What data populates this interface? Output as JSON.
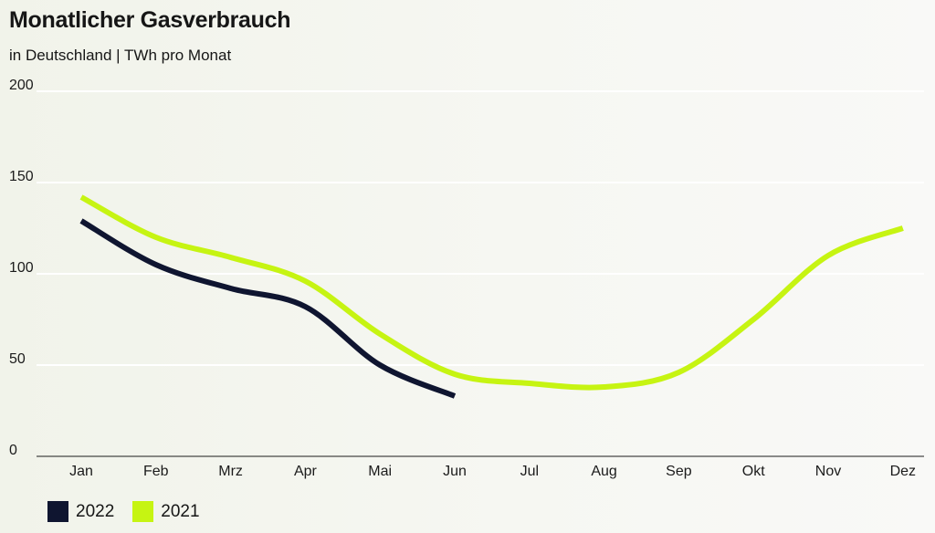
{
  "title": "Monatlicher Gasverbrauch",
  "subtitle": "in Deutschland | TWh pro Monat",
  "colors": {
    "series_2022": "#0f1530",
    "series_2021": "#c6f412",
    "axis": "#1b1b1b",
    "grid": "#ffffff"
  },
  "chart_data": {
    "type": "line",
    "categories": [
      "Jan",
      "Feb",
      "Mrz",
      "Apr",
      "Mai",
      "Jun",
      "Jul",
      "Aug",
      "Sep",
      "Okt",
      "Nov",
      "Dez"
    ],
    "series": [
      {
        "name": "2022",
        "values": [
          129,
          105,
          92,
          82,
          50,
          33,
          null,
          null,
          null,
          null,
          null,
          null
        ]
      },
      {
        "name": "2021",
        "values": [
          142,
          120,
          109,
          96,
          67,
          45,
          40,
          38,
          46,
          75,
          110,
          125
        ]
      }
    ],
    "xlabel": "",
    "ylabel": "",
    "ylim": [
      0,
      200
    ],
    "yticks": [
      "0",
      "50",
      "100",
      "150",
      "200"
    ],
    "grid": true,
    "legend_position": "bottom-left"
  },
  "legend": [
    {
      "label": "2022"
    },
    {
      "label": "2021"
    }
  ]
}
